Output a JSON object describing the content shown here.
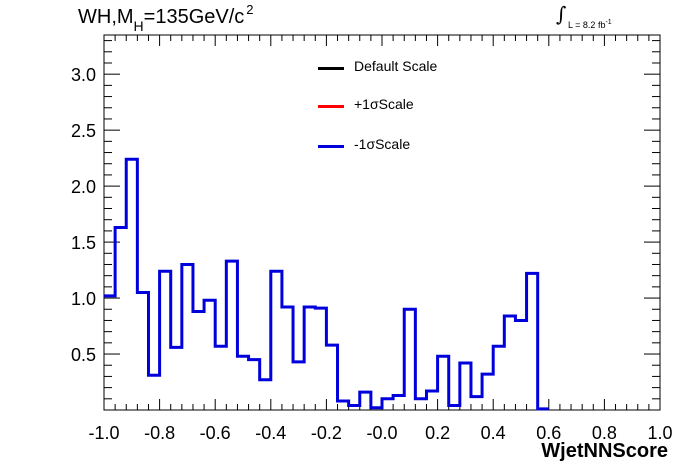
{
  "title": {
    "main": "WH,M",
    "sub": "H",
    "rest": "=135GeV/c",
    "sup": "2"
  },
  "lumi": {
    "integral": "∫",
    "text": "L = 8.2 fb",
    "sup": "-1"
  },
  "legend": [
    {
      "label": "Default Scale",
      "color": "#000000"
    },
    {
      "label": "+1σScale",
      "color": "#ff0000"
    },
    {
      "label": "-1σScale",
      "color": "#0000dd"
    }
  ],
  "chart_data": {
    "type": "step",
    "xlabel": "WjetNNScore",
    "ylabel": "",
    "xlim": [
      -1.0,
      1.0
    ],
    "ylim": [
      0,
      3.35
    ],
    "xticks": [
      -1.0,
      -0.8,
      -0.6,
      -0.4,
      -0.2,
      0.0,
      0.2,
      0.4,
      0.6,
      0.8,
      1.0
    ],
    "xtick_labels": [
      "-1.0",
      "-0.8",
      "-0.6",
      "-0.4",
      "-0.2",
      "-0.0",
      "0.2",
      "0.4",
      "0.6",
      "0.8",
      "1.0"
    ],
    "yticks": [
      0.5,
      1.0,
      1.5,
      2.0,
      2.5,
      3.0
    ],
    "ytick_labels": [
      "0.5",
      "1.0",
      "1.5",
      "2.0",
      "2.5",
      "3.0"
    ],
    "bin_edges_start": -1.0,
    "bin_width": 0.04,
    "series": [
      {
        "name": "-1σScale",
        "color": "#0000dd",
        "values": [
          1.02,
          1.63,
          2.24,
          1.05,
          0.31,
          1.24,
          0.56,
          1.3,
          0.88,
          0.98,
          0.57,
          1.33,
          0.48,
          0.45,
          0.27,
          1.24,
          0.92,
          0.43,
          0.92,
          0.91,
          0.58,
          0.08,
          0.04,
          0.16,
          0.02,
          0.1,
          0.13,
          0.9,
          0.1,
          0.17,
          0.48,
          0.04,
          0.42,
          0.12,
          0.32,
          0.57,
          0.84,
          0.8,
          1.22,
          0.01
        ]
      }
    ]
  }
}
